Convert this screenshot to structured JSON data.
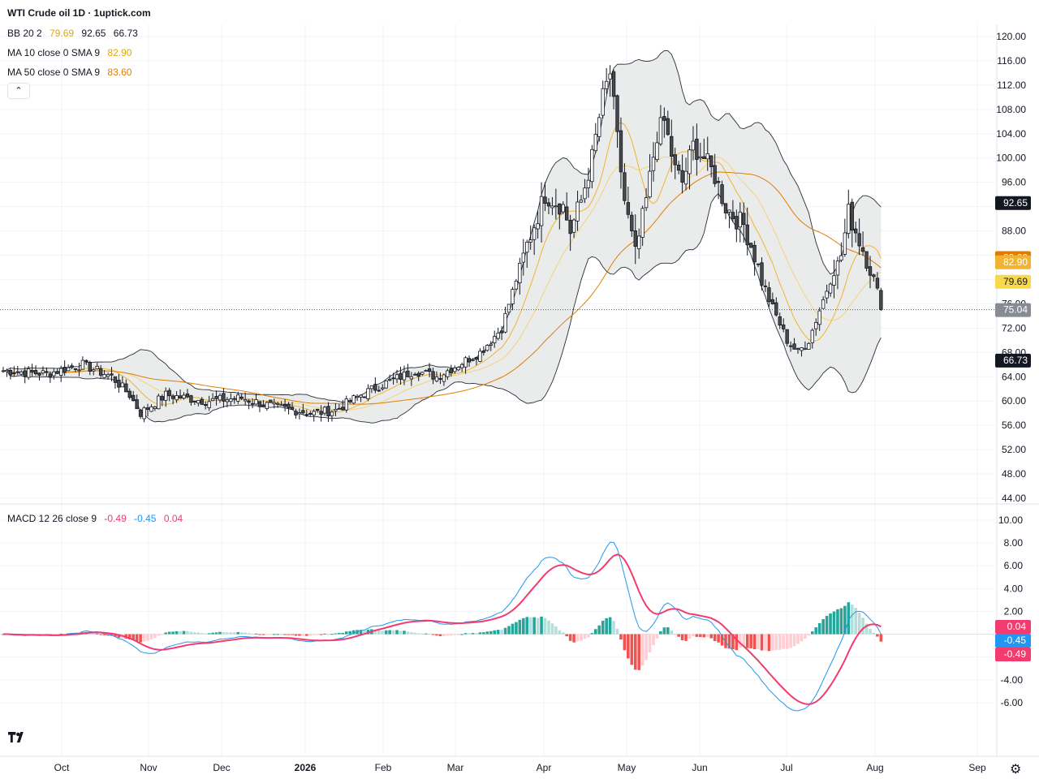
{
  "header": {
    "title": "WTI Crude oil  1D · 1uptick.com",
    "bb_label": "BB 20 2",
    "bb_values": [
      "79.69",
      "92.65",
      "66.73"
    ],
    "ma10_label": "MA 10 close 0 SMA 9",
    "ma10_value": "82.90",
    "ma50_label": "MA 50 close 0 SMA 9",
    "ma50_value": "83.60",
    "macd_label": "MACD 12 26 close 9",
    "macd_values": [
      "-0.49",
      "-0.45",
      "0.04"
    ]
  },
  "colors": {
    "up_candle": "#ffffff",
    "down_candle": "#4a4a4a",
    "bb_fill": "#e6e7e8",
    "ma10": "#f0b432",
    "ma50": "#e07d00",
    "macd_line": "#2196f3",
    "signal_line": "#f23b6f",
    "hist_up_strong": "#26a69a",
    "hist_up_weak": "#b2dfdb",
    "hist_down_strong": "#ef5350",
    "hist_down_weak": "#ffcdd2"
  },
  "icons": {
    "logo": "tradingview-logo-icon",
    "settings": "gear-icon",
    "collapse": "chevron-up-icon"
  },
  "chart_data": [
    {
      "type": "candlestick",
      "ylim": [
        44,
        120
      ],
      "y_ticks": [
        "120.00",
        "116.00",
        "112.00",
        "108.00",
        "104.00",
        "100.00",
        "96.00",
        "92.00",
        "88.00",
        "84.00",
        "80.00",
        "76.00",
        "72.00",
        "68.00",
        "64.00",
        "60.00",
        "56.00",
        "52.00",
        "48.00",
        "44.00"
      ],
      "x_tick_labels": [
        "Oct",
        "Nov",
        "Dec",
        "2026",
        "Feb",
        "Mar",
        "Apr",
        "May",
        "Jun",
        "Jul",
        "Aug",
        "Sep"
      ],
      "last_price": "75.04",
      "price_labels": [
        {
          "label": "92.65",
          "series": "BB upper"
        },
        {
          "label": "83.60",
          "series": "MA 50"
        },
        {
          "label": "82.90",
          "series": "MA 10"
        },
        {
          "label": "79.69",
          "series": "BB basis"
        },
        {
          "label": "75.04",
          "series": "Last"
        },
        {
          "label": "66.73",
          "series": "BB lower"
        }
      ],
      "anchors": [
        [
          0,
          65
        ],
        [
          12,
          64.5
        ],
        [
          22,
          66
        ],
        [
          30,
          64
        ],
        [
          35,
          61
        ],
        [
          38,
          58
        ],
        [
          45,
          61
        ],
        [
          56,
          60
        ],
        [
          66,
          60.5
        ],
        [
          75,
          59
        ],
        [
          86,
          58
        ],
        [
          92,
          58.5
        ],
        [
          99,
          61
        ],
        [
          106,
          63
        ],
        [
          114,
          65
        ],
        [
          120,
          64
        ],
        [
          126,
          66
        ],
        [
          132,
          68
        ],
        [
          138,
          72
        ],
        [
          144,
          84
        ],
        [
          150,
          94
        ],
        [
          155,
          92
        ],
        [
          157,
          88
        ],
        [
          160,
          93
        ],
        [
          163,
          100
        ],
        [
          166,
          110
        ],
        [
          168,
          114
        ],
        [
          170,
          103
        ],
        [
          172,
          93
        ],
        [
          175,
          84
        ],
        [
          178,
          93
        ],
        [
          181,
          104
        ],
        [
          183,
          106
        ],
        [
          186,
          98
        ],
        [
          188,
          96
        ],
        [
          191,
          102
        ],
        [
          194,
          100
        ],
        [
          197,
          97
        ],
        [
          200,
          92
        ],
        [
          203,
          90
        ],
        [
          205,
          89
        ],
        [
          208,
          84
        ],
        [
          211,
          78
        ],
        [
          214,
          74
        ],
        [
          217,
          70
        ],
        [
          220,
          68
        ],
        [
          223,
          70
        ],
        [
          226,
          75
        ],
        [
          229,
          80
        ],
        [
          232,
          84
        ],
        [
          234,
          91
        ],
        [
          236,
          88
        ],
        [
          238,
          85
        ],
        [
          240,
          82
        ],
        [
          243,
          75.04
        ]
      ]
    },
    {
      "type": "line",
      "name": "MACD 12 26 close 9",
      "ylim": [
        -8,
        10
      ],
      "y_ticks": [
        "10.00",
        "8.00",
        "6.00",
        "4.00",
        "2.00",
        "-2.00",
        "-4.00",
        "-6.00"
      ],
      "last_values": [
        "0.04",
        "-0.45",
        "-0.49"
      ]
    }
  ]
}
